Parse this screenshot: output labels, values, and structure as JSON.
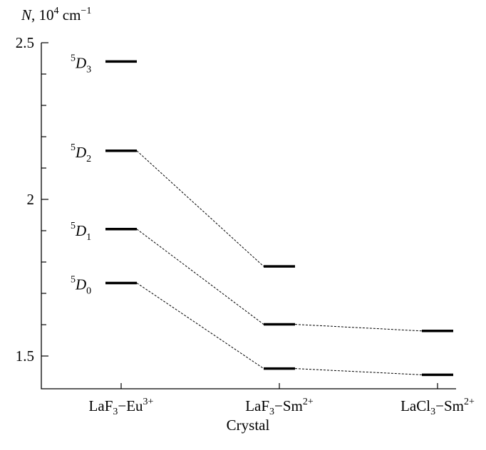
{
  "chart_data": {
    "type": "scatter",
    "ylabel": {
      "main": "N, 10",
      "exp": "4",
      "unit": " cm",
      "unit_exp": "−1"
    },
    "xlabel": "Crystal",
    "ylim": [
      1.41,
      2.5
    ],
    "y_ticks_major": [
      {
        "value": 1.5,
        "label": "1.5"
      },
      {
        "value": 2.0,
        "label": "2"
      },
      {
        "value": 2.5,
        "label": "2.5"
      }
    ],
    "y_tick_step_minor": 0.1,
    "categories": [
      {
        "base": "LaF",
        "sub": "3",
        "mid": "−Eu",
        "sup": "3+"
      },
      {
        "base": "LaF",
        "sub": "3",
        "mid": "−Sm",
        "sup": "2+"
      },
      {
        "base": "LaCl",
        "sub": "3",
        "mid": "−Sm",
        "sup": "2+"
      }
    ],
    "levels": [
      {
        "category": 0,
        "value": 2.44,
        "label": {
          "sup": "5",
          "main": "D",
          "sub": "3"
        }
      },
      {
        "category": 0,
        "value": 2.155,
        "label": {
          "sup": "5",
          "main": "D",
          "sub": "2"
        }
      },
      {
        "category": 0,
        "value": 1.905,
        "label": {
          "sup": "5",
          "main": "D",
          "sub": "1"
        }
      },
      {
        "category": 0,
        "value": 1.733,
        "label": {
          "sup": "5",
          "main": "D",
          "sub": "0"
        }
      },
      {
        "category": 1,
        "value": 1.786
      },
      {
        "category": 1,
        "value": 1.601
      },
      {
        "category": 1,
        "value": 1.46
      },
      {
        "category": 2,
        "value": 1.58
      },
      {
        "category": 2,
        "value": 1.44
      }
    ],
    "connectors": [
      [
        1,
        4
      ],
      [
        2,
        5
      ],
      [
        3,
        6
      ],
      [
        5,
        7
      ],
      [
        6,
        8
      ]
    ]
  }
}
